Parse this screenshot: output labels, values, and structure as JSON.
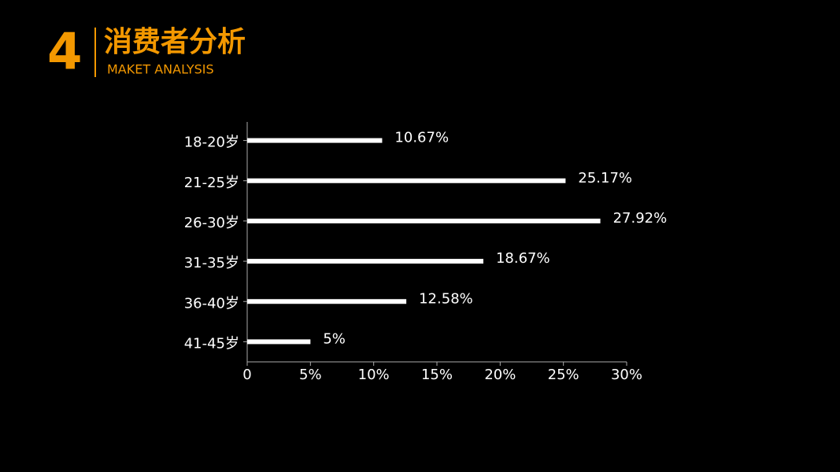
{
  "header": {
    "number": "4",
    "title": "消费者分析",
    "subtitle": "MAKET ANALYSIS"
  },
  "chart_data": {
    "type": "hbar",
    "categories": [
      "18-20岁",
      "21-25岁",
      "26-30岁",
      "31-35岁",
      "36-40岁",
      "41-45岁"
    ],
    "values": [
      10.67,
      25.17,
      27.92,
      18.67,
      12.58,
      5
    ],
    "value_labels": [
      "10.67%",
      "25.17%",
      "27.92%",
      "18.67%",
      "12.58%",
      "5%"
    ],
    "color": "#ffffff",
    "xlim": [
      0,
      30
    ],
    "xticks": [
      0,
      {
        "value": 5,
        "label": "5%"
      },
      {
        "value": 10,
        "label": "10%"
      },
      {
        "value": 15,
        "label": "15%"
      },
      {
        "value": 20,
        "label": "20%"
      },
      {
        "value": 25,
        "label": "25%"
      },
      {
        "value": 30,
        "label": "30%"
      }
    ]
  }
}
